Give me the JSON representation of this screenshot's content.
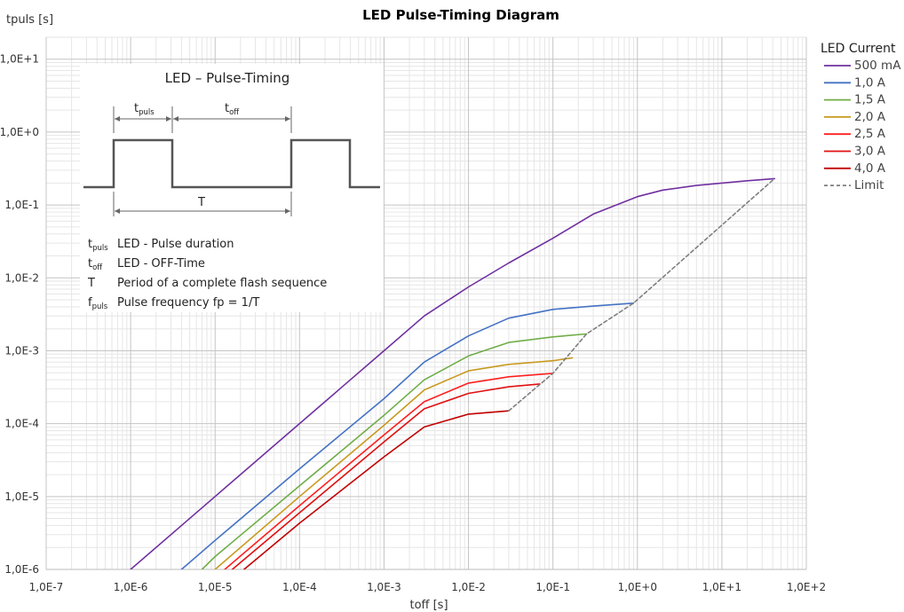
{
  "chart_data": {
    "type": "line",
    "title": "LED Pulse-Timing Diagram",
    "xlabel": "toff [s]",
    "ylabel": "tpuls [s]",
    "x_scale": "log",
    "y_scale": "log",
    "xlim": [
      1e-07,
      100
    ],
    "ylim": [
      1e-06,
      20
    ],
    "x_ticks": [
      1e-07,
      1e-06,
      1e-05,
      0.0001,
      0.001,
      0.01,
      0.1,
      1,
      10,
      100
    ],
    "x_tick_labels": [
      "1,0E-7",
      "1,0E-6",
      "1,0E-5",
      "1,0E-4",
      "1,0E-3",
      "1,0E-2",
      "1,0E-1",
      "1,0E+0",
      "1,0E+1",
      "1,0E+2"
    ],
    "y_ticks": [
      1e-06,
      1e-05,
      0.0001,
      0.001,
      0.01,
      0.1,
      1,
      10
    ],
    "y_tick_labels": [
      "1,0E-6",
      "1,0E-5",
      "1,0E-4",
      "1,0E-3",
      "1,0E-2",
      "1,0E-1",
      "1,0E+0",
      "1,0E+1"
    ],
    "grid": true,
    "legend_title": "LED Current",
    "legend_position": "right",
    "series": [
      {
        "name": "500 mA",
        "color": "#7030a0",
        "dashed": false,
        "points": [
          [
            1e-06,
            1e-06
          ],
          [
            1e-05,
            1e-05
          ],
          [
            0.0001,
            0.0001
          ],
          [
            0.001,
            0.001
          ],
          [
            0.003,
            0.003
          ],
          [
            0.01,
            0.0075
          ],
          [
            0.03,
            0.016
          ],
          [
            0.1,
            0.035
          ],
          [
            0.3,
            0.075
          ],
          [
            1,
            0.13
          ],
          [
            2,
            0.16
          ],
          [
            5,
            0.185
          ],
          [
            10,
            0.2
          ],
          [
            20,
            0.215
          ],
          [
            42,
            0.23
          ]
        ]
      },
      {
        "name": "1,0 A",
        "color": "#4472c4",
        "dashed": false,
        "points": [
          [
            4e-06,
            1e-06
          ],
          [
            1e-05,
            2.5e-06
          ],
          [
            0.0001,
            2.4e-05
          ],
          [
            0.001,
            0.00022
          ],
          [
            0.003,
            0.0007
          ],
          [
            0.01,
            0.0016
          ],
          [
            0.03,
            0.0028
          ],
          [
            0.1,
            0.0037
          ],
          [
            0.3,
            0.0041
          ],
          [
            0.9,
            0.0045
          ]
        ]
      },
      {
        "name": "1,5 A",
        "color": "#70ad47",
        "dashed": false,
        "points": [
          [
            7e-06,
            1e-06
          ],
          [
            1e-05,
            1.5e-06
          ],
          [
            0.0001,
            1.4e-05
          ],
          [
            0.001,
            0.00013
          ],
          [
            0.003,
            0.0004
          ],
          [
            0.01,
            0.00085
          ],
          [
            0.03,
            0.0013
          ],
          [
            0.1,
            0.00155
          ],
          [
            0.25,
            0.0017
          ]
        ]
      },
      {
        "name": "2,0 A",
        "color": "#c89a20",
        "dashed": false,
        "points": [
          [
            1e-05,
            1e-06
          ],
          [
            0.0001,
            1e-05
          ],
          [
            0.001,
            9.5e-05
          ],
          [
            0.003,
            0.00029
          ],
          [
            0.01,
            0.00053
          ],
          [
            0.03,
            0.00065
          ],
          [
            0.1,
            0.00073
          ],
          [
            0.17,
            0.0008
          ]
        ]
      },
      {
        "name": "2,5 A",
        "color": "#ff2020",
        "dashed": false,
        "points": [
          [
            1.3e-05,
            1e-06
          ],
          [
            0.0001,
            7.5e-06
          ],
          [
            0.001,
            7e-05
          ],
          [
            0.003,
            0.0002
          ],
          [
            0.01,
            0.00036
          ],
          [
            0.03,
            0.00044
          ],
          [
            0.1,
            0.00049
          ]
        ]
      },
      {
        "name": "3,0 A",
        "color": "#e01010",
        "dashed": false,
        "points": [
          [
            1.6e-05,
            1e-06
          ],
          [
            0.0001,
            6e-06
          ],
          [
            0.001,
            5.6e-05
          ],
          [
            0.003,
            0.00016
          ],
          [
            0.01,
            0.00026
          ],
          [
            0.03,
            0.00032
          ],
          [
            0.07,
            0.00035
          ]
        ]
      },
      {
        "name": "4,0 A",
        "color": "#c00000",
        "dashed": false,
        "points": [
          [
            2.2e-05,
            1e-06
          ],
          [
            0.0001,
            4.3e-06
          ],
          [
            0.001,
            3.5e-05
          ],
          [
            0.003,
            9e-05
          ],
          [
            0.01,
            0.000135
          ],
          [
            0.03,
            0.00015
          ]
        ]
      },
      {
        "name": "Limit",
        "color": "#7f7f7f",
        "dashed": true,
        "points": [
          [
            0.03,
            0.00015
          ],
          [
            0.1,
            0.00049
          ],
          [
            0.25,
            0.0017
          ],
          [
            0.9,
            0.0045
          ],
          [
            42,
            0.23
          ]
        ]
      }
    ]
  },
  "inset": {
    "title": "LED – Pulse-Timing",
    "tpuls_sub": "puls",
    "toff_sub": "off",
    "period_label": "T",
    "legend": [
      {
        "sym": "t",
        "sub": "puls",
        "text": "LED - Pulse duration"
      },
      {
        "sym": "t",
        "sub": "off",
        "text": "LED - OFF-Time"
      },
      {
        "sym": "T",
        "sub": "",
        "text": "Period of a complete flash sequence"
      },
      {
        "sym": "f",
        "sub": "puls",
        "text": "Pulse frequency fp = 1/T"
      }
    ]
  }
}
